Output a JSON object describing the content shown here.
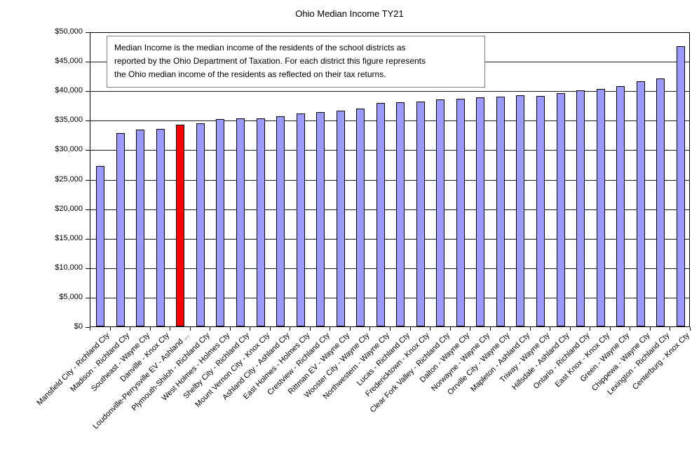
{
  "chart_data": {
    "type": "bar",
    "title": "Ohio Median Income TY21",
    "annotation_lines": [
      "Median Income is the median income of the residents of the school districts as",
      "reported by the Ohio Department of Taxation. For each district this figure represents",
      "the Ohio median income of the residents as reflected on their tax returns."
    ],
    "categories": [
      "Mansfield City - Richland Cty",
      "Madison - Richland Cty",
      "Southeast - Wayne Cty",
      "Danville - Knox Cty",
      "Loudonville-Perrysville EV - Ashland ...",
      "Plymouth-Shiloh - Richland Cty",
      "West Holmes - Holmes Cty",
      "Shelby City - Richland Cty",
      "Mount Vernon City - Knox Cty",
      "Ashland City - Ashland Cty",
      "East Holmes - Holmes Cty",
      "Crestview - Richland Cty",
      "Rittman EV - Wayne Cty",
      "Wooster City - Wayne Cty",
      "Northwestern - Wayne Cty",
      "Lucas - Richland Cty",
      "Fredericktown - Knox Cty",
      "Clear Fork Valley - Richland Cty",
      "Dalton - Wayne Cty",
      "Norwayne - Wayne Cty",
      "Orrville City - Wayne Cty",
      "Mapleton - Ashland Cty",
      "Triway - Wayne Cty",
      "Hillsdale - Ashland Cty",
      "Ontario - Richland Cty",
      "East Knox - Knox Cty",
      "Green - Wayne Cty",
      "Chippewa - Wayne Cty",
      "Lexington - Richland Cty",
      "Centerburg - Knox Cty"
    ],
    "values": [
      27300,
      32800,
      33400,
      33600,
      34300,
      34500,
      35200,
      35300,
      35400,
      35700,
      36200,
      36400,
      36700,
      37000,
      38000,
      38100,
      38200,
      38600,
      38700,
      38900,
      39100,
      39300,
      39200,
      39600,
      40100,
      40300,
      40800,
      41700,
      42100,
      47600
    ],
    "highlight_index": 4,
    "highlighted_category": "Loudonville-Perrysville EV - Ashland ...",
    "xlabel": "",
    "ylabel": "",
    "ylim": [
      0,
      50000
    ],
    "ytick_step": 5000,
    "ytick_labels_top_to_bottom": [
      "$50,000",
      "$45,000",
      "$40,000",
      "$35,000",
      "$30,000",
      "$25,000",
      "$20,000",
      "$15,000",
      "$10,000",
      "$5,000",
      "$0"
    ],
    "grid": "horizontal",
    "legend": "none",
    "colors": {
      "bar": "#9999FF",
      "highlight": "#FF0000",
      "bar_border": "#000000",
      "gridline": "#1a1a1a",
      "axis": "#000000",
      "annotation_border": "#808080",
      "text": "#000000",
      "background": "#FFFFFF"
    }
  }
}
